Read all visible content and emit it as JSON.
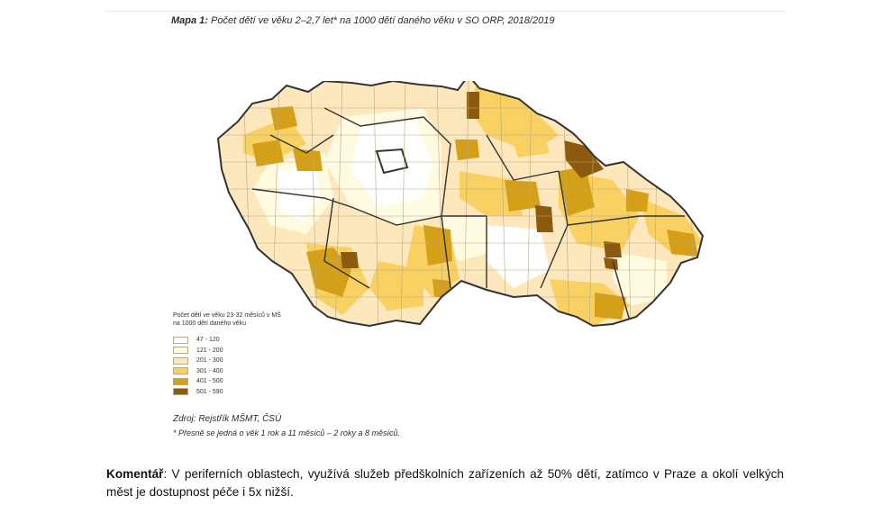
{
  "title": {
    "label": "Mapa 1:",
    "text": "Počet dětí ve věku 2–2,7 let* na 1000 dětí daného věku v SO ORP, 2018/2019"
  },
  "legend": {
    "title_line1": "Počet dětí ve věku 23-32 měsíců v MŠ",
    "title_line2": "na 1000 dětí daného věku",
    "items": [
      {
        "label": "47 - 120",
        "color": "#ffffff"
      },
      {
        "label": "121 - 200",
        "color": "#fffbe0"
      },
      {
        "label": "201 - 300",
        "color": "#fde7bd"
      },
      {
        "label": "301 - 400",
        "color": "#f8d162"
      },
      {
        "label": "401 - 500",
        "color": "#d4a017"
      },
      {
        "label": "501 - 590",
        "color": "#8c5a0e"
      }
    ]
  },
  "source": "Zdroj: Rejstřík MŠMT, ČSÚ",
  "note": "* Přesně se jedná o věk 1 rok a 11 měsíců – 2 roky a 8 měsíců.",
  "comment": {
    "label": "Komentář",
    "text": ": V periferních oblastech,  využívá služeb předškolních zařízeních až 50% dětí, zatímco v Praze a okolí velkých měst je dostupnost péče i 5x nižší."
  }
}
